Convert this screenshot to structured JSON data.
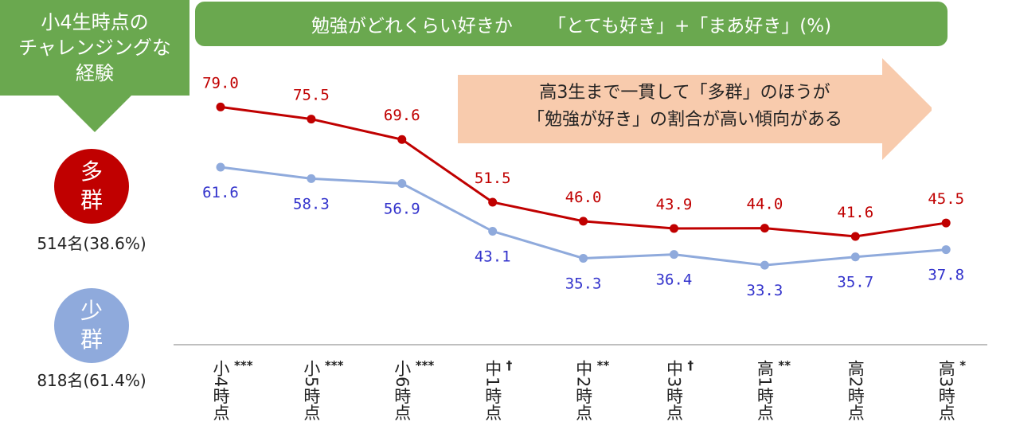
{
  "left_panel": {
    "lines": [
      "小4生時点の",
      "チャレンジングな",
      "経験"
    ]
  },
  "groups": {
    "many": {
      "lines": [
        "多",
        "群"
      ],
      "count": "514名(38.6%)",
      "color": "#c00000"
    },
    "few": {
      "lines": [
        "少",
        "群"
      ],
      "count": "818名(61.4%)",
      "color": "#8faadc"
    }
  },
  "title": {
    "main": "勉強がどれくらい好きか",
    "sub": "「とても好き」+「まあ好き」(%)"
  },
  "callout": {
    "lines": [
      "高3生まで一貫して「多群」のほうが",
      "「勉強が好き」の割合が高い傾向がある"
    ],
    "color": "#f8cbad"
  },
  "chart_data": {
    "type": "line",
    "categories": [
      "小4時点",
      "小5時点",
      "小6時点",
      "中1時点",
      "中2時点",
      "中3時点",
      "高1時点",
      "高2時点",
      "高3時点"
    ],
    "significance": [
      "***",
      "***",
      "***",
      "†",
      "**",
      "†",
      "**",
      "",
      "*"
    ],
    "series": [
      {
        "name": "多群",
        "values": [
          79.0,
          75.5,
          69.6,
          51.5,
          46.0,
          43.9,
          44.0,
          41.6,
          45.5
        ],
        "color": "#c00000",
        "label_color": "#c00000"
      },
      {
        "name": "少群",
        "values": [
          61.6,
          58.3,
          56.9,
          43.1,
          35.3,
          36.4,
          33.3,
          35.7,
          37.8
        ],
        "color": "#8faadc",
        "label_color": "#3333cc"
      }
    ],
    "ylim": [
      20,
      90
    ]
  }
}
